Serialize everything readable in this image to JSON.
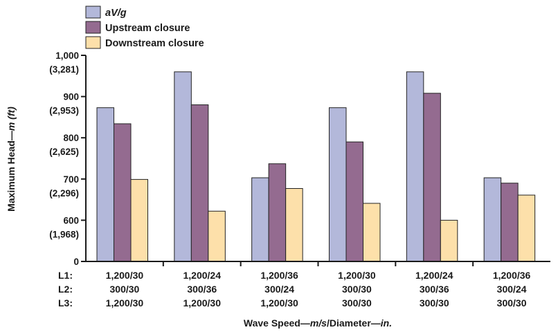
{
  "chart_data": {
    "type": "bar",
    "xlabel_parts": [
      "Wave Speed—",
      "m/s",
      "/Diameter—",
      "in."
    ],
    "ylabel_parts": [
      "Maximum Head—",
      "m (ft)"
    ],
    "ylim": [
      500,
      1000
    ],
    "y_ticks": [
      {
        "value": 500,
        "label": "0",
        "sub": ""
      },
      {
        "value": 600,
        "label": "600",
        "sub": "(1,968)"
      },
      {
        "value": 700,
        "label": "700",
        "sub": "(2,296)"
      },
      {
        "value": 800,
        "label": "800",
        "sub": "(2,625)"
      },
      {
        "value": 900,
        "label": "900",
        "sub": "(2,953)"
      },
      {
        "value": 1000,
        "label": "1,000",
        "sub": "(3,281)"
      }
    ],
    "row_labels": [
      "L1:",
      "L2:",
      "L3:"
    ],
    "categories": [
      [
        "1,200/30",
        "300/30",
        "1,200/30"
      ],
      [
        "1,200/24",
        "300/36",
        "1,200/30"
      ],
      [
        "1,200/36",
        "300/24",
        "1,200/30"
      ],
      [
        "1,200/30",
        "300/30",
        "300/30"
      ],
      [
        "1,200/24",
        "300/36",
        "300/30"
      ],
      [
        "1,200/36",
        "300/24",
        "300/30"
      ]
    ],
    "series": [
      {
        "name": "aV/g",
        "italic": true,
        "color": "#b3b8da",
        "values": [
          873,
          960,
          703,
          873,
          960,
          703
        ]
      },
      {
        "name": "Upstream closure",
        "italic": false,
        "color": "#946b90",
        "values": [
          834,
          880,
          737,
          790,
          908,
          690
        ]
      },
      {
        "name": "Downstream closure",
        "italic": false,
        "color": "#fde0aa",
        "values": [
          699,
          622,
          677,
          641,
          600,
          661
        ]
      }
    ]
  }
}
